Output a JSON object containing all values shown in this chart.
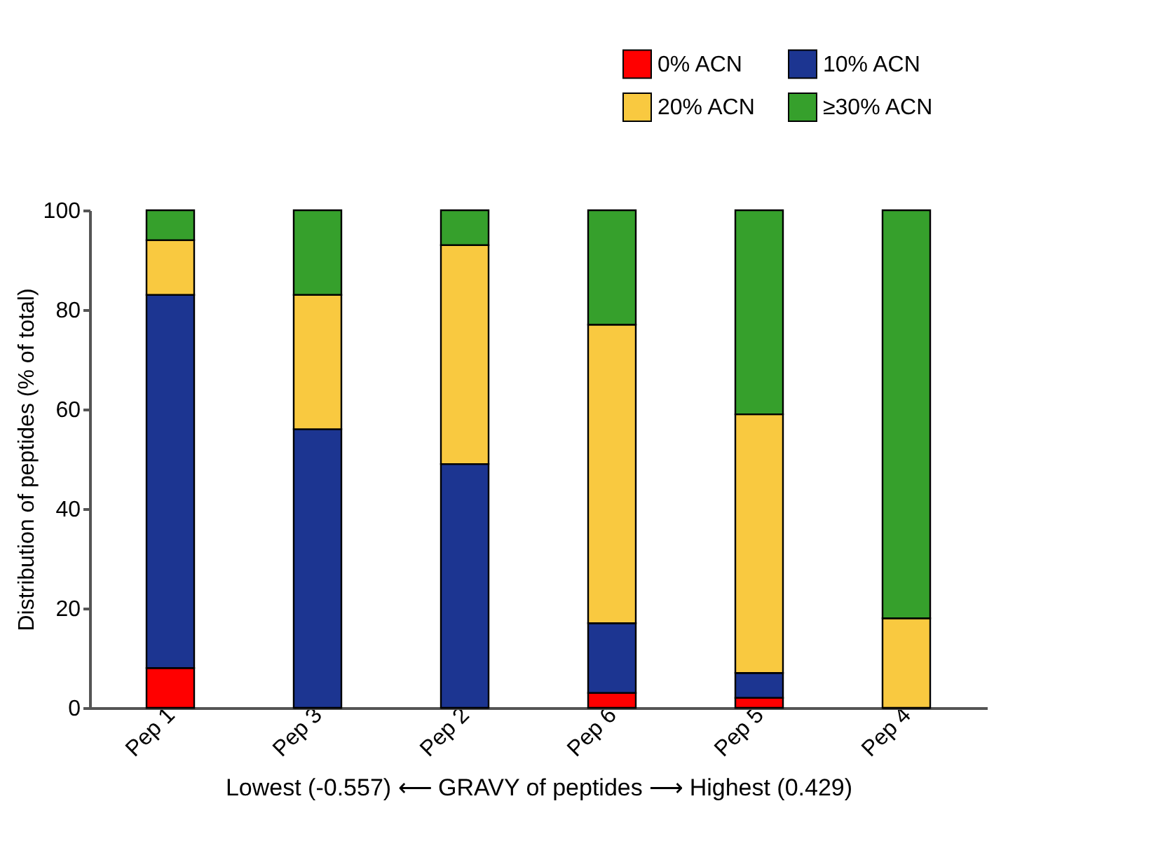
{
  "chart_data": {
    "type": "bar",
    "stacked": true,
    "ylabel": "Distribution of peptides (% of total)",
    "xlabel": "Lowest (-0.557) ⟵ GRAVY of  peptides ⟶ Highest (0.429)",
    "categories": [
      "Pep 1",
      "Pep 3",
      "Pep 2",
      "Pep 6",
      "Pep 5",
      "Pep 4"
    ],
    "series": [
      {
        "name": "0% ACN",
        "color": "#ff0000",
        "values": [
          8,
          0,
          0,
          3,
          2,
          0
        ]
      },
      {
        "name": "10% ACN",
        "color": "#1c3591",
        "values": [
          75,
          56,
          49,
          14,
          5,
          0
        ]
      },
      {
        "name": "20% ACN",
        "color": "#f9c940",
        "values": [
          11,
          27,
          44,
          60,
          52,
          18
        ]
      },
      {
        "name": "≥30% ACN",
        "color": "#36a02c",
        "values": [
          6,
          17,
          7,
          23,
          41,
          82
        ]
      }
    ],
    "ylim": [
      0,
      100
    ],
    "yticks": [
      0,
      20,
      40,
      60,
      80,
      100
    ],
    "grid": false,
    "legend": "top right"
  }
}
